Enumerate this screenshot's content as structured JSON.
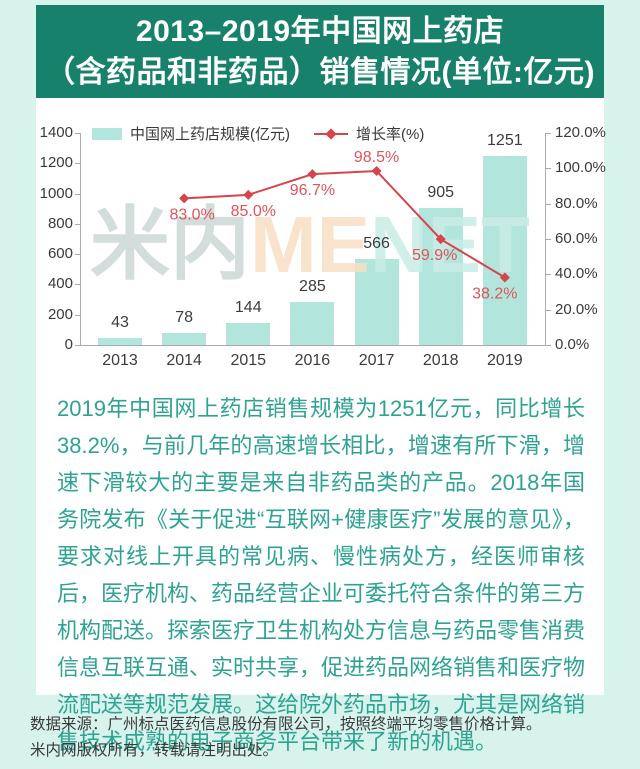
{
  "header": {
    "title_line1": "2013–2019年中国网上药店",
    "title_line2": "（含药品和非药品）销售情况(单位:亿元)"
  },
  "watermark": {
    "text": "米内MENET",
    "part1": "米内",
    "part2": "ME",
    "part3": "NET"
  },
  "chart_data": {
    "type": "combo-bar-line",
    "categories": [
      "2013",
      "2014",
      "2015",
      "2016",
      "2017",
      "2018",
      "2019"
    ],
    "series": [
      {
        "name": "中国网上药店规模(亿元)",
        "type": "bar",
        "axis": "left",
        "values": [
          43,
          78,
          144,
          285,
          566,
          905,
          1251
        ]
      },
      {
        "name": "增长率(%)",
        "type": "line",
        "axis": "right",
        "values": [
          null,
          83.0,
          85.0,
          96.7,
          98.5,
          59.9,
          38.2
        ],
        "labels": [
          null,
          "83.0%",
          "85.0%",
          "96.7%",
          "98.5%",
          "59.9%",
          "38.2%"
        ],
        "label_pos": [
          null,
          "below",
          "below",
          "below",
          "above",
          "below",
          "below"
        ],
        "label_dx": [
          null,
          8,
          5,
          0,
          0,
          -6,
          -10
        ]
      }
    ],
    "ylim": [
      0,
      1400
    ],
    "y2lim": [
      0,
      120
    ],
    "left_ticks": [
      "1400",
      "1200",
      "1000",
      "800",
      "600",
      "400",
      "200",
      "0"
    ],
    "right_ticks": [
      "120.0%",
      "100.0%",
      "80.0%",
      "60.0%",
      "40.0%",
      "20.0%",
      "0.0%"
    ],
    "legend_position": "top",
    "grid": false,
    "title": "2013–2019年中国网上药店（含药品和非药品）销售情况(单位:亿元)"
  },
  "body": {
    "paragraph": "2019年中国网上药店销售规模为1251亿元，同比增长38.2%，与前几年的高速增长相比，增速有所下滑，增速下滑较大的主要是来自非药品类的产品。2018年国务院发布《关于促进“互联网+健康医疗”发展的意见》，要求对线上开具的常见病、慢性病处方，经医师审核后，医疗机构、药品经营企业可委托符合条件的第三方机构配送。探索医疗卫生机构处方信息与药品零售消费信息互联互通、实时共享，促进药品网络销售和医疗物流配送等规范发展。这给院外药品市场，尤其是网络销售技术成熟的电子商务平台带来了新的机遇。"
  },
  "footer": {
    "line1": "数据来源：广州标点医药信息股份有限公司，按照终端平均零售价格计算。",
    "line2": "米内网版权所有，转载请注明出处。"
  },
  "colors": {
    "page_bg": "#d7f3ec",
    "header_bg": "#17816b",
    "panel_bg": "#ffffff",
    "bar_fill": "#b2e6dd",
    "line_red": "#d6454c",
    "label_red": "#dd555c",
    "axis_line": "#ababab",
    "axis_text": "#3a3a3a",
    "value_text": "#3c3c3c",
    "body_text_teal": "#2ea392",
    "watermark_gray": "#ccd8d5",
    "watermark_orange": "#f8dfc4",
    "watermark_teal": "#c9ede6"
  }
}
